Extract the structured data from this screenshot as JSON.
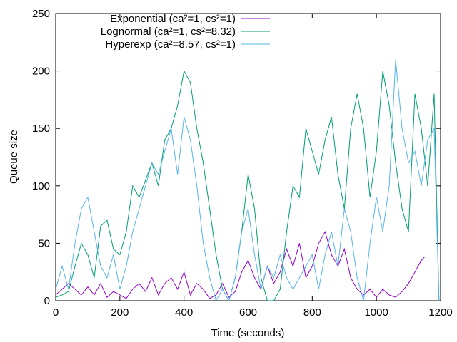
{
  "chart_data": {
    "type": "line",
    "title": "",
    "xlabel": "Time (seconds)",
    "ylabel": "Queue size",
    "xlim": [
      0,
      1200
    ],
    "ylim": [
      0,
      250
    ],
    "xticks": [
      0,
      200,
      400,
      600,
      800,
      1000,
      1200
    ],
    "yticks": [
      0,
      50,
      100,
      150,
      200,
      250
    ],
    "grid": false,
    "legend_position": "top-left",
    "series": [
      {
        "name": "Exponential (ca²=1, cs²=1)",
        "color": "#9400d3",
        "x": [
          0,
          20,
          40,
          60,
          80,
          100,
          120,
          140,
          160,
          180,
          200,
          220,
          240,
          260,
          280,
          300,
          320,
          340,
          360,
          380,
          400,
          420,
          440,
          460,
          480,
          500,
          520,
          540,
          560,
          580,
          600,
          620,
          640,
          660,
          680,
          700,
          720,
          740,
          760,
          780,
          800,
          820,
          840,
          860,
          880,
          900,
          920,
          940,
          960,
          980,
          1000,
          1020,
          1040,
          1060,
          1080,
          1100,
          1120,
          1140,
          1150
        ],
        "y": [
          5,
          10,
          15,
          10,
          5,
          12,
          5,
          15,
          3,
          8,
          5,
          2,
          10,
          15,
          8,
          20,
          5,
          15,
          20,
          10,
          25,
          5,
          15,
          10,
          2,
          5,
          15,
          3,
          8,
          25,
          35,
          20,
          10,
          30,
          15,
          25,
          45,
          30,
          50,
          20,
          30,
          50,
          60,
          40,
          30,
          45,
          20,
          10,
          5,
          10,
          3,
          10,
          5,
          3,
          8,
          15,
          25,
          35,
          38
        ]
      },
      {
        "name": "Lognormal (ca²=1, cs²=8.32)",
        "color": "#009e73",
        "x": [
          0,
          20,
          40,
          60,
          80,
          100,
          120,
          140,
          160,
          180,
          200,
          220,
          240,
          260,
          280,
          300,
          320,
          340,
          360,
          380,
          400,
          420,
          440,
          460,
          480,
          500,
          520,
          540,
          560,
          580,
          600,
          620,
          640,
          660,
          680,
          700,
          720,
          740,
          760,
          780,
          800,
          820,
          840,
          860,
          880,
          900,
          920,
          940,
          960,
          980,
          1000,
          1020,
          1040,
          1060,
          1080,
          1100,
          1120,
          1140,
          1160,
          1180,
          1195
        ],
        "y": [
          3,
          5,
          8,
          30,
          50,
          40,
          20,
          65,
          70,
          45,
          40,
          60,
          100,
          90,
          105,
          120,
          100,
          140,
          150,
          170,
          200,
          190,
          150,
          120,
          80,
          40,
          10,
          0,
          20,
          60,
          110,
          80,
          20,
          0,
          0,
          10,
          60,
          100,
          90,
          150,
          130,
          110,
          140,
          160,
          110,
          80,
          150,
          180,
          150,
          90,
          130,
          200,
          170,
          120,
          80,
          60,
          180,
          150,
          100,
          180,
          0
        ]
      },
      {
        "name": "Hyperexp (ca²=8.57, cs²=1)",
        "color": "#56b4e9",
        "x": [
          0,
          20,
          40,
          60,
          80,
          100,
          120,
          140,
          160,
          180,
          200,
          220,
          240,
          260,
          280,
          300,
          320,
          340,
          360,
          380,
          400,
          420,
          440,
          460,
          480,
          500,
          520,
          540,
          560,
          580,
          600,
          620,
          640,
          660,
          680,
          700,
          720,
          740,
          760,
          780,
          800,
          820,
          840,
          860,
          880,
          900,
          920,
          940,
          960,
          980,
          1000,
          1020,
          1040,
          1060,
          1080,
          1100,
          1120,
          1140,
          1160,
          1180,
          1195
        ],
        "y": [
          10,
          30,
          10,
          50,
          80,
          90,
          60,
          30,
          20,
          40,
          10,
          30,
          60,
          80,
          100,
          120,
          110,
          130,
          150,
          110,
          160,
          140,
          100,
          50,
          20,
          0,
          10,
          0,
          20,
          60,
          80,
          40,
          10,
          30,
          20,
          40,
          20,
          10,
          20,
          30,
          40,
          10,
          40,
          60,
          30,
          80,
          60,
          20,
          0,
          50,
          90,
          60,
          100,
          210,
          150,
          120,
          130,
          100,
          140,
          150,
          0
        ]
      }
    ]
  }
}
